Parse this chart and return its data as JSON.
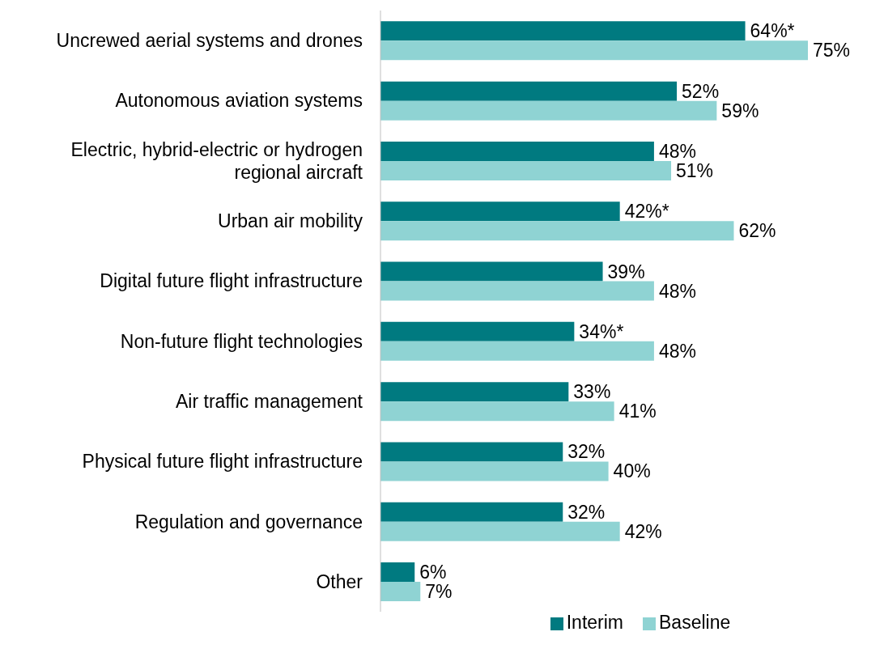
{
  "chart_data": {
    "type": "bar",
    "orientation": "horizontal",
    "categories": [
      "Uncrewed aerial systems and drones",
      "Autonomous aviation systems",
      "Electric, hybrid-electric or hydrogen regional aircraft",
      "Urban air mobility",
      "Digital future flight infrastructure",
      "Non-future flight technologies",
      "Air traffic management",
      "Physical future flight infrastructure",
      "Regulation and governance",
      "Other"
    ],
    "series": [
      {
        "name": "Interim",
        "color": "#007a80",
        "values": [
          64,
          52,
          48,
          42,
          39,
          34,
          33,
          32,
          32,
          6
        ],
        "value_labels": [
          "64%*",
          "52%",
          "48%",
          "42%*",
          "39%",
          "34%*",
          "33%",
          "32%",
          "32%",
          "6%"
        ]
      },
      {
        "name": "Baseline",
        "color": "#8fd3d3",
        "values": [
          75,
          59,
          51,
          62,
          48,
          48,
          41,
          40,
          42,
          7
        ],
        "value_labels": [
          "75%",
          "59%",
          "51%",
          "62%",
          "48%",
          "48%",
          "41%",
          "40%",
          "42%",
          "7%"
        ]
      }
    ],
    "legend": "bottom",
    "grid": false
  }
}
